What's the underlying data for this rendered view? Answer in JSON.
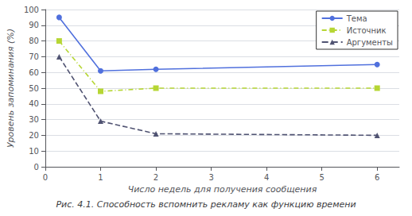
{
  "chart_data": {
    "type": "line",
    "title": "Рис. 4.1. Способность вспомнить рекламу как функцию времени",
    "xlabel": "Число недель для получения сообщения",
    "ylabel": "Уровень запоминания (%)",
    "x": [
      0.25,
      1,
      2,
      6
    ],
    "series": [
      {
        "name": "Тема",
        "values": [
          95,
          61,
          62,
          65
        ],
        "marker": "circle",
        "line_style": "solid"
      },
      {
        "name": "Источник",
        "values": [
          80,
          48,
          50,
          50
        ],
        "marker": "square",
        "line_style": "dashdot"
      },
      {
        "name": "Аргументы",
        "values": [
          70,
          29,
          21,
          20
        ],
        "marker": "triangle",
        "line_style": "dashed"
      }
    ],
    "xlim": [
      0,
      6.4
    ],
    "xticks": [
      0,
      1,
      2,
      3,
      4,
      5,
      6
    ],
    "ylim": [
      0,
      100
    ],
    "yticks": [
      0,
      10,
      20,
      30,
      40,
      50,
      60,
      70,
      80,
      90,
      100
    ],
    "grid": true,
    "legend": "upper right"
  }
}
